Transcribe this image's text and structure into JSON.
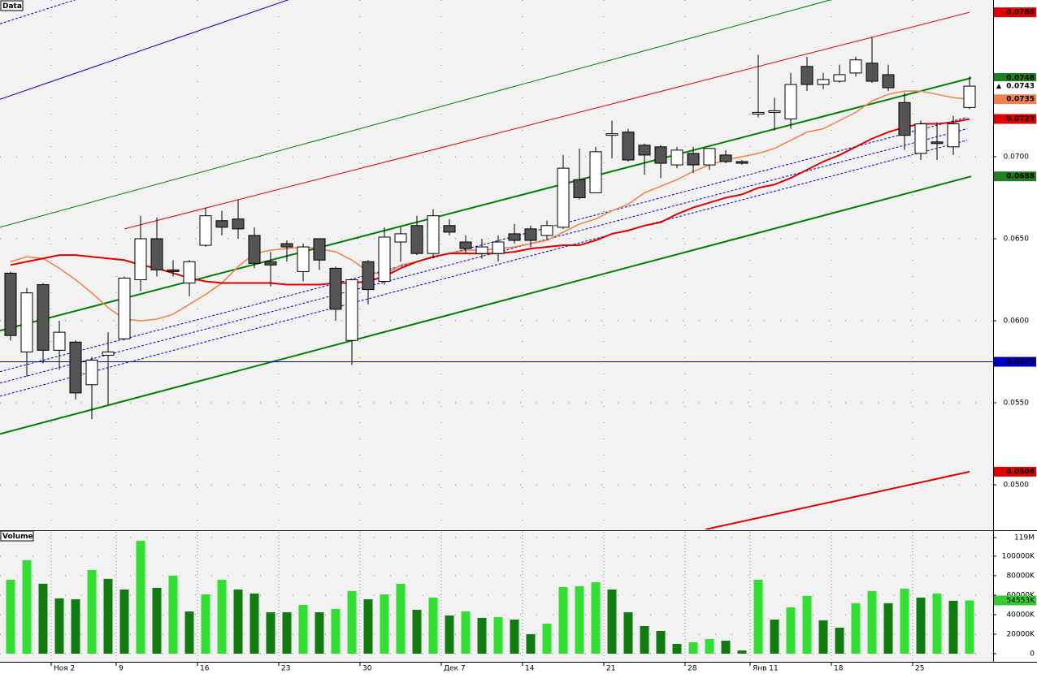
{
  "chart_data": [
    {
      "type": "candlestick",
      "title": "Data",
      "categories": [
        null,
        null,
        null,
        "Ноя 2",
        null,
        null,
        null,
        "9",
        null,
        null,
        null,
        null,
        "16",
        null,
        null,
        null,
        null,
        "23",
        null,
        null,
        null,
        null,
        "30",
        null,
        null,
        null,
        null,
        "Дек 7",
        null,
        null,
        null,
        null,
        "14",
        null,
        null,
        null,
        null,
        "21",
        null,
        null,
        null,
        null,
        "28",
        null,
        null,
        null,
        "Янв 11",
        null,
        null,
        null,
        null,
        "18",
        null,
        null,
        null,
        null,
        "25",
        null,
        null,
        null
      ],
      "open": [
        0.0629,
        0.0581,
        0.0622,
        0.0582,
        0.0587,
        0.0561,
        0.0579,
        0.0589,
        0.0625,
        0.065,
        0.0631,
        0.0623,
        0.0646,
        0.0661,
        0.0662,
        0.0652,
        0.0636,
        0.0647,
        0.063,
        0.065,
        0.0632,
        0.0588,
        0.0636,
        0.0624,
        0.0648,
        0.0658,
        0.0641,
        0.0658,
        0.0648,
        0.0641,
        0.0641,
        0.0653,
        0.0656,
        0.0652,
        0.0657,
        0.0686,
        0.0678,
        0.0713,
        0.0715,
        0.0707,
        0.0706,
        0.0695,
        0.0702,
        0.0695,
        0.0701,
        0.0697,
        0.0726,
        0.0727,
        0.0723,
        0.0755,
        0.0744,
        0.0746,
        0.0751,
        0.0757,
        0.075,
        0.0733,
        0.0702,
        0.0709,
        0.0706,
        0.073
      ],
      "high": [
        0.063,
        0.062,
        0.0623,
        0.06,
        0.0588,
        0.0578,
        0.0593,
        0.0627,
        0.0664,
        0.0663,
        0.0637,
        0.0637,
        0.0669,
        0.0667,
        0.0674,
        0.0657,
        0.0642,
        0.0649,
        0.0647,
        0.065,
        0.0633,
        0.0625,
        0.0637,
        0.0657,
        0.0657,
        0.0664,
        0.0668,
        0.0662,
        0.0652,
        0.065,
        0.0652,
        0.0659,
        0.0658,
        0.0661,
        0.0701,
        0.0705,
        0.0706,
        0.0722,
        0.0717,
        0.0708,
        0.0707,
        0.0706,
        0.0706,
        0.0705,
        0.0704,
        0.0698,
        0.0762,
        0.0736,
        0.0751,
        0.0761,
        0.0751,
        0.0756,
        0.0761,
        0.0773,
        0.0756,
        0.0739,
        0.0722,
        0.0721,
        0.0725,
        0.0749
      ],
      "low": [
        0.0588,
        0.0566,
        0.0574,
        0.057,
        0.0552,
        0.054,
        0.0549,
        0.0588,
        0.0618,
        0.0627,
        0.0627,
        0.0615,
        0.0645,
        0.0652,
        0.065,
        0.0632,
        0.0621,
        0.0636,
        0.0624,
        0.0631,
        0.06,
        0.0573,
        0.061,
        0.0622,
        0.0636,
        0.064,
        0.0638,
        0.0652,
        0.0641,
        0.0638,
        0.0636,
        0.0647,
        0.0645,
        0.065,
        0.0656,
        0.0674,
        0.0678,
        0.0699,
        0.0697,
        0.0689,
        0.0687,
        0.0693,
        0.069,
        0.0692,
        0.0696,
        0.0695,
        0.0724,
        0.0716,
        0.0717,
        0.074,
        0.0741,
        0.0745,
        0.0749,
        0.0745,
        0.074,
        0.0704,
        0.0698,
        0.0698,
        0.0701,
        0.0729
      ],
      "close": [
        0.0591,
        0.0617,
        0.0582,
        0.0593,
        0.0556,
        0.0576,
        0.0581,
        0.0626,
        0.065,
        0.0631,
        0.063,
        0.0636,
        0.0664,
        0.0657,
        0.0656,
        0.0635,
        0.0634,
        0.0645,
        0.0645,
        0.0637,
        0.0607,
        0.0625,
        0.0619,
        0.0651,
        0.0653,
        0.0641,
        0.0664,
        0.0654,
        0.0644,
        0.0645,
        0.0648,
        0.0649,
        0.0649,
        0.0658,
        0.0693,
        0.0675,
        0.0703,
        0.0714,
        0.0698,
        0.0701,
        0.0696,
        0.0704,
        0.0695,
        0.0705,
        0.0697,
        0.0696,
        0.0727,
        0.0728,
        0.0744,
        0.0744,
        0.0747,
        0.075,
        0.0759,
        0.0746,
        0.0742,
        0.0713,
        0.072,
        0.0708,
        0.072,
        0.0743
      ],
      "up_color": "#ffffff",
      "down_color": "#555555",
      "ylim": [
        0.04728,
        0.07955
      ],
      "yticks": [
        {
          "value": 0.05,
          "label": "0.0500"
        },
        {
          "value": 0.055,
          "label": "0.0550"
        },
        {
          "value": 0.06,
          "label": "0.0600"
        },
        {
          "value": 0.065,
          "label": "0.0650"
        },
        {
          "value": 0.07,
          "label": "0.0700"
        }
      ],
      "grid": true,
      "moving_averages": [
        {
          "color": "#f08040",
          "values": [
            0.0636,
            0.0639,
            0.0638,
            0.0632,
            0.0625,
            0.0617,
            0.0608,
            0.0601,
            0.06,
            0.0601,
            0.0604,
            0.061,
            0.0616,
            0.0623,
            0.0633,
            0.0641,
            0.0643,
            0.0644,
            0.0645,
            0.0644,
            0.0642,
            0.0637,
            0.063,
            0.0628,
            0.0634,
            0.0636,
            0.0639,
            0.0641,
            0.0643,
            0.0643,
            0.0644,
            0.0645,
            0.0647,
            0.0649,
            0.0654,
            0.0659,
            0.0662,
            0.0667,
            0.0671,
            0.0678,
            0.0682,
            0.0686,
            0.0691,
            0.0695,
            0.0698,
            0.07,
            0.0702,
            0.0705,
            0.071,
            0.0715,
            0.0717,
            0.0722,
            0.0727,
            0.0734,
            0.0738,
            0.074,
            0.074,
            0.0738,
            0.0736,
            0.0735
          ]
        },
        {
          "color": "#e00000",
          "values": [
            0.0634,
            0.0636,
            0.0638,
            0.064,
            0.064,
            0.0639,
            0.0638,
            0.0637,
            0.0634,
            0.0632,
            0.0629,
            0.0626,
            0.0624,
            0.0623,
            0.0623,
            0.0623,
            0.0623,
            0.0622,
            0.0622,
            0.0622,
            0.0623,
            0.0623,
            0.0624,
            0.0627,
            0.0632,
            0.0636,
            0.0639,
            0.0641,
            0.0641,
            0.0641,
            0.0641,
            0.0642,
            0.0644,
            0.0645,
            0.0646,
            0.0646,
            0.0649,
            0.0653,
            0.0655,
            0.0658,
            0.066,
            0.0665,
            0.0669,
            0.0672,
            0.0675,
            0.0677,
            0.0681,
            0.0683,
            0.0687,
            0.0692,
            0.0697,
            0.0701,
            0.0706,
            0.0711,
            0.0715,
            0.0718,
            0.072,
            0.072,
            0.0721,
            0.0723
          ]
        }
      ],
      "lines": [
        {
          "color": "#008000",
          "width": 2,
          "dash": false,
          "x": [
            -0.65,
            59.1
          ],
          "values": [
            0.0594,
            0.0748
          ]
        },
        {
          "color": "#008000",
          "width": 2,
          "dash": false,
          "x": [
            -0.65,
            59.1
          ],
          "values": [
            0.0531,
            0.0688
          ]
        },
        {
          "color": "#008000",
          "width": 1,
          "dash": false,
          "x": [
            -0.65,
            50.6
          ],
          "values": [
            0.0657,
            0.0796
          ]
        },
        {
          "color": "#e00000",
          "width": 1,
          "dash": false,
          "x": [
            7,
            59
          ],
          "values": [
            0.0656,
            0.0788
          ]
        },
        {
          "color": "#e00000",
          "width": 2,
          "dash": false,
          "x": [
            42.75,
            59
          ],
          "values": [
            0.04728,
            0.0508
          ]
        },
        {
          "color": "#0000c0",
          "width": 1,
          "dash": false,
          "x": [
            -0.65,
            17.2
          ],
          "values": [
            0.0735,
            0.0796
          ]
        },
        {
          "color": "#0000c0",
          "width": 1,
          "dash": true,
          "x": [
            -0.65,
            4.1
          ],
          "values": [
            0.0781,
            0.0796
          ]
        },
        {
          "color": "#0000c0",
          "width": 1,
          "dash": false,
          "x": [
            -0.65,
            60.45
          ],
          "values": [
            0.0575,
            0.0575
          ]
        },
        {
          "color": "#0000c0",
          "width": 1,
          "dash": true,
          "x": [
            -0.65,
            58.85
          ],
          "values": [
            0.0569,
            0.0724
          ]
        },
        {
          "color": "#0000c0",
          "width": 1,
          "dash": true,
          "x": [
            -0.65,
            58.85
          ],
          "values": [
            0.0562,
            0.0717
          ]
        },
        {
          "color": "#0000c0",
          "width": 1,
          "dash": true,
          "x": [
            -0.65,
            58.85
          ],
          "values": [
            0.0554,
            0.071
          ]
        }
      ],
      "price_labels": [
        {
          "value": 0.0788,
          "label": "0.0788",
          "color": "#e00000"
        },
        {
          "value": 0.0748,
          "label": "0.0748",
          "color": "#208020"
        },
        {
          "value": 0.0743,
          "label": "0.0743",
          "color": "#000000"
        },
        {
          "value": 0.0735,
          "label": "0.0735",
          "color": "#f08050"
        },
        {
          "value": 0.0723,
          "label": "0.0723",
          "color": "#e00000"
        },
        {
          "value": 0.0688,
          "label": "0.0688",
          "color": "#208020"
        },
        {
          "value": 0.0575,
          "label": "0.0575",
          "color": "#0000c0"
        },
        {
          "value": 0.0508,
          "label": "0.0508",
          "color": "#e00000"
        }
      ]
    },
    {
      "type": "bar",
      "title": "Volume",
      "values": [
        75800000,
        95800000,
        71700000,
        56700000,
        55800000,
        85800000,
        76700000,
        65800000,
        115800000,
        67500000,
        80000000,
        43300000,
        60800000,
        75800000,
        65800000,
        61700000,
        42500000,
        42500000,
        50000000,
        42500000,
        45800000,
        64200000,
        55800000,
        60800000,
        71700000,
        45000000,
        57500000,
        39200000,
        43300000,
        36700000,
        37500000,
        35000000,
        20000000,
        30800000,
        68300000,
        69200000,
        73300000,
        65800000,
        42500000,
        28300000,
        23300000,
        10000000,
        11700000,
        15000000,
        13300000,
        3300000,
        75800000,
        35000000,
        47500000,
        59200000,
        34200000,
        26700000,
        51700000,
        64200000,
        51700000,
        66700000,
        57500000,
        61700000,
        54200000,
        54553000
      ],
      "up_color": "#33dd33",
      "down_color": "#117a11",
      "ylim": [
        0,
        119000000
      ],
      "yticks": [
        0,
        {
          "value": 20000000,
          "label": "20000K"
        },
        {
          "value": 40000000,
          "label": "40000K"
        },
        {
          "value": 60000000,
          "label": "60000K"
        },
        {
          "value": 80000000,
          "label": "80000K"
        },
        {
          "value": 100000000,
          "label": "100000K"
        },
        {
          "value": 119000000,
          "label": "119M"
        }
      ],
      "grid": true,
      "last_label": {
        "value": 54553000,
        "label": "54553K",
        "color": "#33cc33"
      }
    }
  ]
}
